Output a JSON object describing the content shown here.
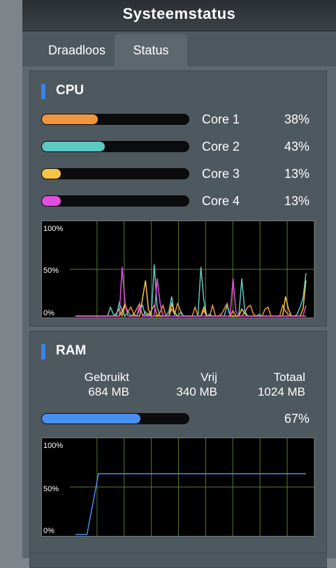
{
  "header": {
    "title": "Systeemstatus"
  },
  "tabs": [
    {
      "label": "Draadloos",
      "active": false
    },
    {
      "label": "Status",
      "active": true
    }
  ],
  "cpu": {
    "title": "CPU",
    "cores": [
      {
        "label": "Core 1",
        "percent_text": "38%",
        "percent": 38,
        "color": "#f0953f"
      },
      {
        "label": "Core 2",
        "percent_text": "43%",
        "percent": 43,
        "color": "#5ec8c1"
      },
      {
        "label": "Core 3",
        "percent_text": "13%",
        "percent": 13,
        "color": "#f6c445"
      },
      {
        "label": "Core 4",
        "percent_text": "13%",
        "percent": 13,
        "color": "#e24fe0"
      }
    ],
    "graph": {
      "label_100": "100%",
      "label_50": "50%",
      "label_0": "0%"
    }
  },
  "ram": {
    "title": "RAM",
    "used_label": "Gebruikt",
    "used_value": "684 MB",
    "free_label": "Vrij",
    "free_value": "340 MB",
    "total_label": "Totaal",
    "total_value": "1024 MB",
    "percent_text": "67%",
    "percent": 67,
    "color": "#4a8ff0",
    "graph": {
      "label_100": "100%",
      "label_50": "50%",
      "label_0": "0%"
    }
  },
  "chart_data": [
    {
      "type": "line",
      "ylim": [
        0,
        100
      ],
      "yticks": [
        "100%",
        "50%",
        "0%"
      ],
      "grid": true,
      "x": [
        0,
        1,
        2,
        3,
        4,
        5,
        6,
        7,
        8,
        9,
        10,
        11,
        12,
        13,
        14,
        15,
        16,
        17,
        18,
        19,
        20,
        21,
        22,
        23,
        24,
        25,
        26,
        27,
        28,
        29,
        30,
        31,
        32,
        33,
        34,
        35,
        36,
        37,
        38,
        39,
        40,
        41,
        42,
        43,
        44,
        45,
        46,
        47,
        48,
        49,
        50,
        51,
        52,
        53,
        54,
        55,
        56,
        57,
        58,
        59,
        60,
        61,
        62,
        63,
        64,
        65,
        66,
        67,
        68,
        69,
        70,
        71,
        72,
        73,
        74,
        75,
        76,
        77,
        78,
        79
      ],
      "series": [
        {
          "color": "#f0953f",
          "values": [
            0,
            0,
            0,
            0,
            0,
            0,
            0,
            0,
            0,
            0,
            0,
            0,
            0,
            0,
            3,
            8,
            0,
            12,
            5,
            10,
            2,
            8,
            14,
            0,
            5,
            0,
            6,
            12,
            0,
            4,
            12,
            0,
            0,
            8,
            2,
            14,
            6,
            0,
            0,
            0,
            0,
            10,
            0,
            0,
            6,
            0,
            0,
            12,
            0,
            0,
            2,
            8,
            14,
            0,
            6,
            0,
            0,
            0,
            4,
            10,
            12,
            2,
            0,
            0,
            0,
            8,
            10,
            0,
            0,
            0,
            0,
            12,
            5,
            2,
            0,
            0,
            0,
            0,
            0,
            0
          ]
        },
        {
          "color": "#5ec8c1",
          "values": [
            0,
            0,
            0,
            0,
            0,
            0,
            0,
            0,
            0,
            0,
            0,
            0,
            10,
            2,
            0,
            15,
            6,
            0,
            5,
            0,
            0,
            0,
            8,
            12,
            0,
            3,
            0,
            58,
            10,
            0,
            0,
            0,
            5,
            22,
            0,
            0,
            4,
            0,
            0,
            0,
            0,
            0,
            0,
            55,
            18,
            0,
            2,
            0,
            0,
            0,
            0,
            0,
            12,
            0,
            0,
            0,
            0,
            42,
            6,
            0,
            0,
            0,
            0,
            2,
            0,
            0,
            0,
            0,
            0,
            0,
            0,
            0,
            0,
            0,
            0,
            0,
            2,
            10,
            20,
            48
          ]
        },
        {
          "color": "#f6c445",
          "values": [
            0,
            0,
            0,
            0,
            0,
            0,
            0,
            0,
            0,
            0,
            0,
            0,
            0,
            0,
            0,
            0,
            5,
            14,
            0,
            0,
            2,
            0,
            0,
            20,
            40,
            8,
            0,
            0,
            0,
            0,
            0,
            0,
            0,
            14,
            4,
            0,
            0,
            0,
            0,
            0,
            0,
            0,
            0,
            0,
            10,
            0,
            0,
            0,
            0,
            0,
            0,
            0,
            0,
            0,
            0,
            0,
            0,
            8,
            3,
            0,
            0,
            0,
            0,
            0,
            0,
            0,
            0,
            0,
            0,
            0,
            0,
            0,
            22,
            8,
            0,
            0,
            0,
            0,
            8,
            40
          ]
        },
        {
          "color": "#e24fe0",
          "values": [
            0,
            0,
            0,
            0,
            0,
            0,
            0,
            0,
            0,
            0,
            0,
            0,
            0,
            0,
            0,
            0,
            55,
            15,
            0,
            0,
            0,
            0,
            12,
            0,
            0,
            0,
            0,
            0,
            42,
            15,
            0,
            0,
            0,
            0,
            0,
            0,
            0,
            0,
            0,
            0,
            0,
            0,
            0,
            0,
            0,
            0,
            0,
            0,
            0,
            0,
            0,
            0,
            0,
            0,
            42,
            5,
            0,
            0,
            0,
            0,
            0,
            0,
            0,
            0,
            0,
            0,
            0,
            0,
            0,
            0,
            0,
            0,
            0,
            0,
            0,
            0,
            0,
            0,
            0,
            12
          ]
        }
      ]
    },
    {
      "type": "line",
      "ylim": [
        0,
        100
      ],
      "yticks": [
        "100%",
        "50%",
        "0%"
      ],
      "grid": true,
      "x": [
        0,
        1,
        2,
        3,
        4,
        5,
        6,
        7,
        8,
        9,
        10,
        11,
        12,
        13,
        14,
        15,
        16,
        17,
        18,
        19,
        20
      ],
      "series": [
        {
          "color": "#4a8ff0",
          "values": [
            0,
            0,
            67,
            67,
            67,
            67,
            67,
            67,
            67,
            67,
            67,
            67,
            67,
            67,
            67,
            67,
            67,
            67,
            67,
            67,
            67
          ]
        }
      ]
    }
  ]
}
